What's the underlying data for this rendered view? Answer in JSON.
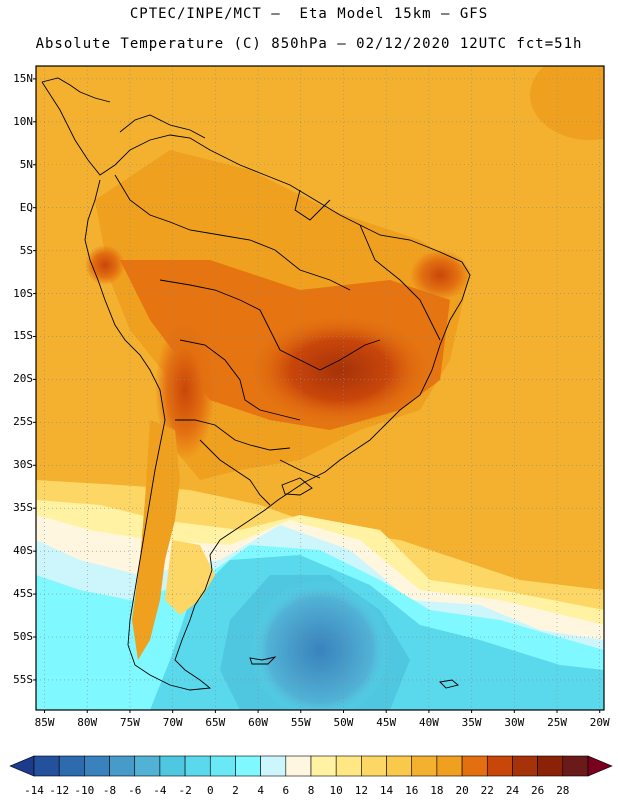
{
  "header": {
    "line1": "CPTEC/INPE/MCT –  Eta Model 15km – GFS",
    "line2": "Absolute Temperature (C) 850hPa – 02/12/2020 12UTC fct=51h"
  },
  "axes": {
    "lat_labels": [
      "15N",
      "10N",
      "5N",
      "EQ",
      "5S",
      "10S",
      "15S",
      "20S",
      "25S",
      "30S",
      "35S",
      "40S",
      "45S",
      "50S",
      "55S"
    ],
    "lat_values": [
      15,
      10,
      5,
      0,
      -5,
      -10,
      -15,
      -20,
      -25,
      -30,
      -35,
      -40,
      -45,
      -50,
      -55
    ],
    "lon_labels": [
      "85W",
      "80W",
      "75W",
      "70W",
      "65W",
      "60W",
      "55W",
      "50W",
      "45W",
      "40W",
      "35W",
      "30W",
      "25W",
      "20W"
    ],
    "lon_values": [
      -85,
      -80,
      -75,
      -70,
      -65,
      -60,
      -55,
      -50,
      -45,
      -40,
      -35,
      -30,
      -25,
      -20
    ]
  },
  "colorbar": {
    "ticks": [
      "-14",
      "-12",
      "-10",
      "-8",
      "-6",
      "-4",
      "-2",
      "0",
      "2",
      "4",
      "6",
      "8",
      "10",
      "12",
      "14",
      "16",
      "18",
      "20",
      "22",
      "24",
      "26",
      "28"
    ],
    "colors": [
      "#1d3b8c",
      "#23519c",
      "#2e6aae",
      "#3a82bd",
      "#469bc9",
      "#52b2d6",
      "#4fc7e0",
      "#5ad9ec",
      "#6ae8f5",
      "#7ff9ff",
      "#ccf6fb",
      "#fff6e0",
      "#fff3a3",
      "#ffe884",
      "#fdd765",
      "#f8c94a",
      "#f3b12f",
      "#f0a01f",
      "#e36f10",
      "#c9460a",
      "#a53209",
      "#8a2208",
      "#6b1a1a",
      "#7a0020"
    ]
  }
}
